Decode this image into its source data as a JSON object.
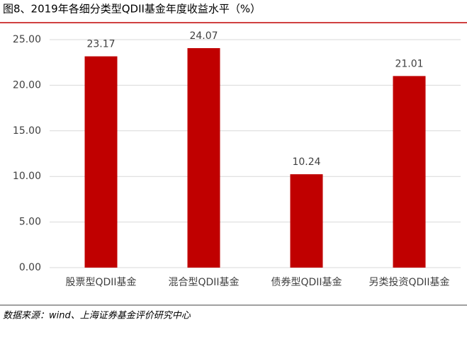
{
  "chart_data": {
    "type": "bar",
    "title": "图8、2019年各细分类型QDII基金年度收益水平（%）",
    "source": "数据来源：wind、上海证券基金评价研究中心",
    "categories": [
      "股票型QDII基金",
      "混合型QDII基金",
      "债券型QDII基金",
      "另类投资QDII基金"
    ],
    "values": [
      23.17,
      24.07,
      10.24,
      21.01
    ],
    "color": "#c00000",
    "ylim": [
      0,
      25
    ],
    "yticks": [
      {
        "value": 0,
        "label": "0.00"
      },
      {
        "value": 5,
        "label": "5.00"
      },
      {
        "value": 10,
        "label": "10.00"
      },
      {
        "value": 15,
        "label": "15.00"
      },
      {
        "value": 20,
        "label": "20.00"
      },
      {
        "value": 25,
        "label": "25.00"
      }
    ],
    "grid": true
  }
}
